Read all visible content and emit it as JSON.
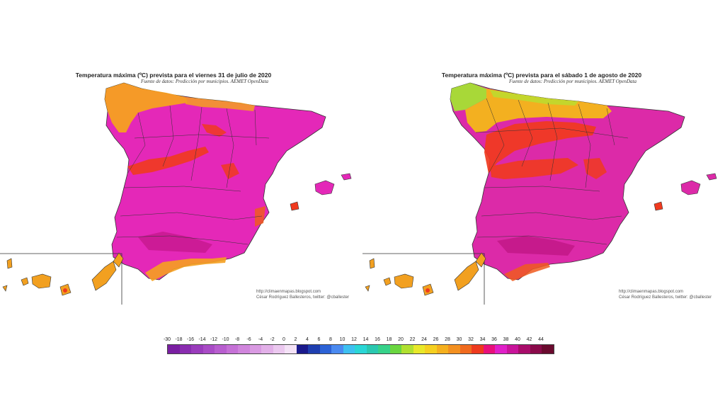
{
  "maps": [
    {
      "title": "Temperatura máxima (ºC) prevista para el viernes 31 de julio de 2020",
      "source": "Fuente de datos: Predicción por municipios. AEMET OpenData",
      "credit_url": "http://climaenmapas.blogspot.com",
      "credit_author": "César Rodríguez Ballesteros, twitter: @cballester"
    },
    {
      "title": "Temperatura máxima (ºC) prevista para el sábado 1 de agosto de 2020",
      "source": "Fuente de datos: Predicción por municipios. AEMET OpenData",
      "credit_url": "http://climaenmapas.blogspot.com",
      "credit_author": "César Rodríguez Ballesteros, twitter: @cballester"
    }
  ],
  "legend": {
    "labels": [
      "-30",
      "-18",
      "-16",
      "-14",
      "-12",
      "-10",
      "-8",
      "-6",
      "-4",
      "-2",
      "0",
      "2",
      "4",
      "6",
      "8",
      "10",
      "12",
      "14",
      "16",
      "18",
      "20",
      "22",
      "24",
      "26",
      "28",
      "30",
      "32",
      "34",
      "36",
      "38",
      "40",
      "42",
      "44"
    ],
    "colors": [
      "#7a1fa2",
      "#8a2db0",
      "#9a3cbc",
      "#a94cc6",
      "#b85ecf",
      "#c571d6",
      "#d085dc",
      "#d99ae2",
      "#e2b0e8",
      "#ebc8ef",
      "#f4e2f6",
      "#1a1a8c",
      "#1f3fb0",
      "#2c62d6",
      "#4a8af0",
      "#3ec0f0",
      "#2ad6d6",
      "#2ac8b0",
      "#36d28a",
      "#6ad640",
      "#b0e030",
      "#e8e82a",
      "#f5d020",
      "#f5b01e",
      "#f39020",
      "#f06a1e",
      "#ee3a1e",
      "#e8107a",
      "#e020c8",
      "#c8149a",
      "#a80c6a",
      "#8a0a4a",
      "#6a0a2e"
    ]
  },
  "colors": {
    "mainland_day1": "#e428b8",
    "mainland_day2": "#dc2aa8",
    "north_coast_day1": "#f5a020",
    "north_coast_day2": "#f3b020",
    "galicia_day2": "#a8d838",
    "hot_red": "#f03a1e",
    "hot_dark": "#b8107a",
    "canarias": "#f2a020",
    "border": "#333333"
  }
}
